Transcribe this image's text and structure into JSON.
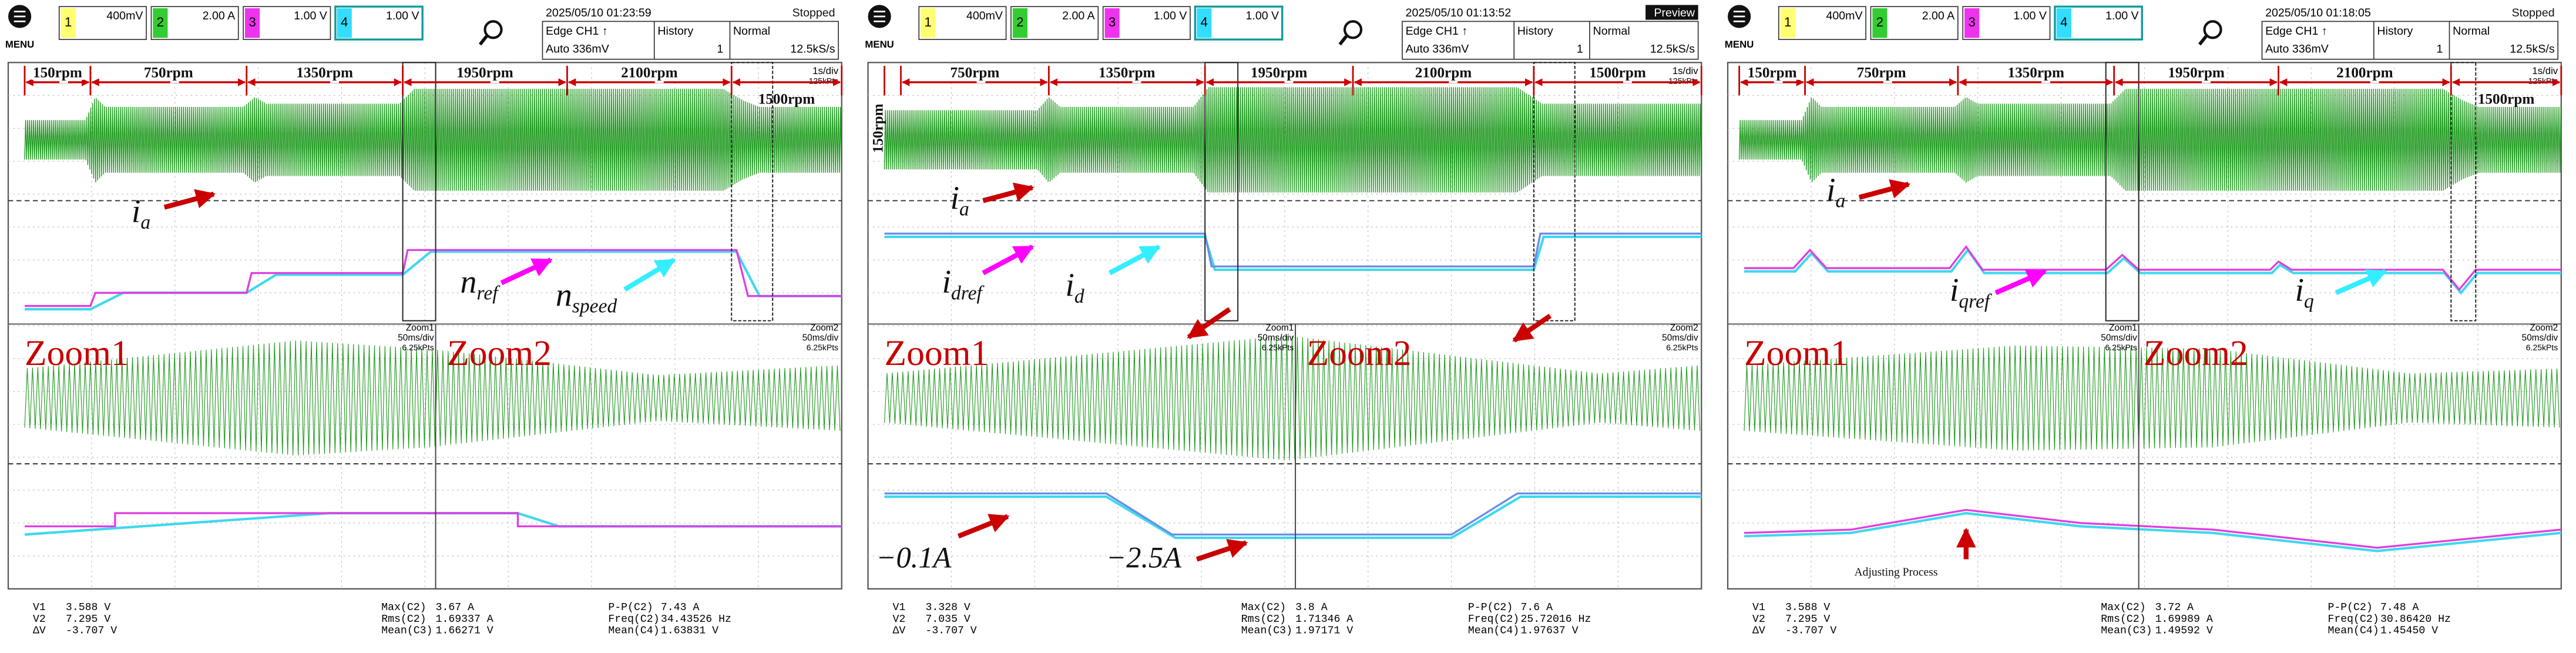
{
  "panels": [
    {
      "menu": "MENU",
      "channels": [
        {
          "num": "1",
          "scale": "400mV"
        },
        {
          "num": "2",
          "scale": "2.00 A"
        },
        {
          "num": "3",
          "scale": "1.00 V"
        },
        {
          "num": "4",
          "scale": "1.00 V"
        }
      ],
      "date": "2025/05/10 01:23:59",
      "trigger": "Edge CH1 ↑",
      "level": "Auto 336mV",
      "history": "History",
      "history_num": "1",
      "mode": "Normal",
      "rate": "12.5kS/s",
      "status": "Stopped",
      "timebase": "1s/div",
      "points": "125kPts",
      "speeds": [
        "150rpm",
        "750rpm",
        "1350rpm",
        "1950rpm",
        "2100rpm",
        "1500rpm"
      ],
      "zoom_info": [
        {
          "name": "Zoom1",
          "timebase": "50ms/div",
          "points": "6.25kPts"
        },
        {
          "name": "Zoom2",
          "timebase": "50ms/div",
          "points": "6.25kPts"
        }
      ],
      "zoom_labels": [
        "Zoom1",
        "Zoom2"
      ],
      "labels": [
        {
          "main": "i",
          "sub": "a"
        },
        {
          "main": "n",
          "sub": "ref"
        },
        {
          "main": "n",
          "sub": "speed"
        }
      ],
      "measurements": [
        [
          {
            "name": "V1",
            "value": "3.588 V"
          },
          {
            "name": "V2",
            "value": "7.295 V"
          },
          {
            "name": "ΔV",
            "value": "-3.707 V"
          }
        ],
        [
          {
            "name": "Max(C2)",
            "value": "3.67 A"
          },
          {
            "name": "Rms(C2)",
            "value": "1.69337 A"
          },
          {
            "name": "Mean(C3)",
            "value": "1.66271 V"
          }
        ],
        [
          {
            "name": "P-P(C2)",
            "value": "7.43 A"
          },
          {
            "name": "Freq(C2)",
            "value": "34.43526 Hz"
          },
          {
            "name": "Mean(C4)",
            "value": "1.63831 V"
          }
        ]
      ]
    },
    {
      "menu": "MENU",
      "channels": [
        {
          "num": "1",
          "scale": "400mV"
        },
        {
          "num": "2",
          "scale": "2.00 A"
        },
        {
          "num": "3",
          "scale": "1.00 V"
        },
        {
          "num": "4",
          "scale": "1.00 V"
        }
      ],
      "date": "2025/05/10 01:13:52",
      "trigger": "Edge CH1 ↑",
      "level": "Auto 336mV",
      "history": "History",
      "history_num": "1",
      "mode": "Normal",
      "rate": "12.5kS/s",
      "status": "Preview",
      "timebase": "1s/div",
      "points": "125kPts",
      "speeds": [
        "150rpm",
        "750rpm",
        "1350rpm",
        "1950rpm",
        "2100rpm",
        "1500rpm"
      ],
      "zoom_info": [
        {
          "name": "Zoom1",
          "timebase": "50ms/div",
          "points": "6.25kPts"
        },
        {
          "name": "Zoom2",
          "timebase": "50ms/div",
          "points": "6.25kPts"
        }
      ],
      "zoom_labels": [
        "Zoom1",
        "Zoom2"
      ],
      "labels": [
        {
          "main": "i",
          "sub": "a"
        },
        {
          "main": "i",
          "sub": "dref"
        },
        {
          "main": "i",
          "sub": "d"
        }
      ],
      "notes": [
        "−0.1A",
        "−2.5A"
      ],
      "measurements": [
        [
          {
            "name": "V1",
            "value": "3.328 V"
          },
          {
            "name": "V2",
            "value": "7.035 V"
          },
          {
            "name": "ΔV",
            "value": "-3.707 V"
          }
        ],
        [
          {
            "name": "Max(C2)",
            "value": "3.8 A"
          },
          {
            "name": "Rms(C2)",
            "value": "1.71346 A"
          },
          {
            "name": "Mean(C3)",
            "value": "1.97171 V"
          }
        ],
        [
          {
            "name": "P-P(C2)",
            "value": "7.6 A"
          },
          {
            "name": "Freq(C2)",
            "value": "25.72016 Hz"
          },
          {
            "name": "Mean(C4)",
            "value": "1.97637 V"
          }
        ]
      ]
    },
    {
      "menu": "MENU",
      "channels": [
        {
          "num": "1",
          "scale": "400mV"
        },
        {
          "num": "2",
          "scale": "2.00 A"
        },
        {
          "num": "3",
          "scale": "1.00 V"
        },
        {
          "num": "4",
          "scale": "1.00 V"
        }
      ],
      "date": "2025/05/10 01:18:05",
      "trigger": "Edge CH1 ↑",
      "level": "Auto 336mV",
      "history": "History",
      "history_num": "1",
      "mode": "Normal",
      "rate": "12.5kS/s",
      "status": "Stopped",
      "timebase": "1s/div",
      "points": "125kPts",
      "speeds": [
        "150rpm",
        "750rpm",
        "1350rpm",
        "1950rpm",
        "2100rpm",
        "1500rpm"
      ],
      "zoom_info": [
        {
          "name": "Zoom1",
          "timebase": "50ms/div",
          "points": "6.25kPts"
        },
        {
          "name": "Zoom2",
          "timebase": "50ms/div",
          "points": "6.25kPts"
        }
      ],
      "zoom_labels": [
        "Zoom1",
        "Zoom2"
      ],
      "labels": [
        {
          "main": "i",
          "sub": "a"
        },
        {
          "main": "i",
          "sub": "qref"
        },
        {
          "main": "i",
          "sub": "q"
        }
      ],
      "notes": [
        "Adjusting Process"
      ],
      "measurements": [
        [
          {
            "name": "V1",
            "value": "3.588 V"
          },
          {
            "name": "V2",
            "value": "7.295 V"
          },
          {
            "name": "ΔV",
            "value": "-3.707 V"
          }
        ],
        [
          {
            "name": "Max(C2)",
            "value": "3.72 A"
          },
          {
            "name": "Rms(C2)",
            "value": "1.69989 A"
          },
          {
            "name": "Mean(C3)",
            "value": "1.49592 V"
          }
        ],
        [
          {
            "name": "P-P(C2)",
            "value": "7.48 A"
          },
          {
            "name": "Freq(C2)",
            "value": "30.86420 Hz"
          },
          {
            "name": "Mean(C4)",
            "value": "1.45450 V"
          }
        ]
      ]
    }
  ]
}
